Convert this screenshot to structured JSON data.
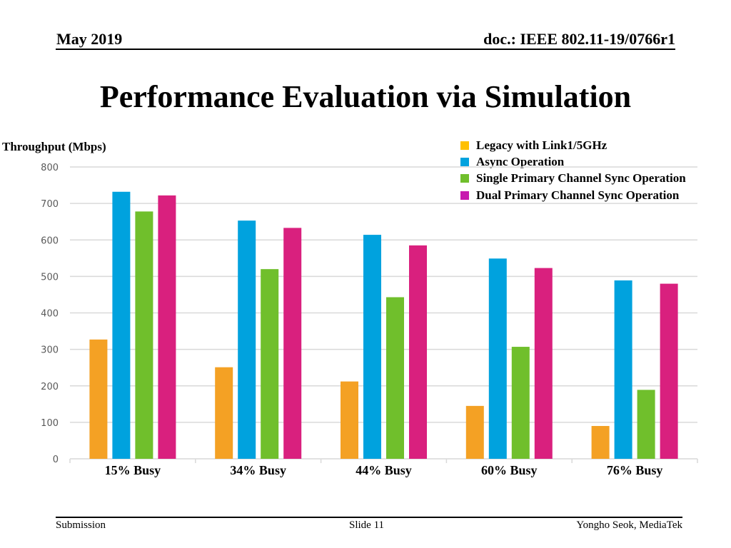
{
  "header": {
    "date": "May 2019",
    "doc": "doc.: IEEE 802.11-19/0766r1"
  },
  "slide_title": "Performance Evaluation via Simulation",
  "footer": {
    "left": "Submission",
    "center": "Slide 11",
    "right": "Yongho Seok, MediaTek"
  },
  "colors": {
    "legacy": "#F4A124",
    "async": "#00A2DE",
    "single": "#70BF2C",
    "dual": "#D9207E",
    "legacy_legend": "#FFC000",
    "async_legend": "#00A2DE",
    "single_legend": "#70BF2C",
    "dual_legend": "#C71BAE",
    "grid": "#D9D9D9",
    "tick": "#595959"
  },
  "chart_data": {
    "type": "bar",
    "title": "",
    "ylabel": "Throughput (Mbps)",
    "xlabel": "",
    "ylim": [
      0,
      800
    ],
    "yticks": [
      0,
      100,
      200,
      300,
      400,
      500,
      600,
      700,
      800
    ],
    "grid": true,
    "legend_position": "top-right",
    "categories": [
      "15% Busy",
      "34% Busy",
      "44% Busy",
      "60% Busy",
      "76% Busy"
    ],
    "series": [
      {
        "name": "Legacy with Link1/5GHz",
        "values": [
          327,
          251,
          212,
          145,
          90
        ]
      },
      {
        "name": "Async Operation",
        "values": [
          732,
          653,
          614,
          549,
          489
        ]
      },
      {
        "name": "Single Primary Channel Sync Operation",
        "values": [
          678,
          520,
          443,
          307,
          189
        ]
      },
      {
        "name": "Dual Primary Channel Sync Operation",
        "values": [
          722,
          633,
          585,
          523,
          480
        ]
      }
    ]
  }
}
